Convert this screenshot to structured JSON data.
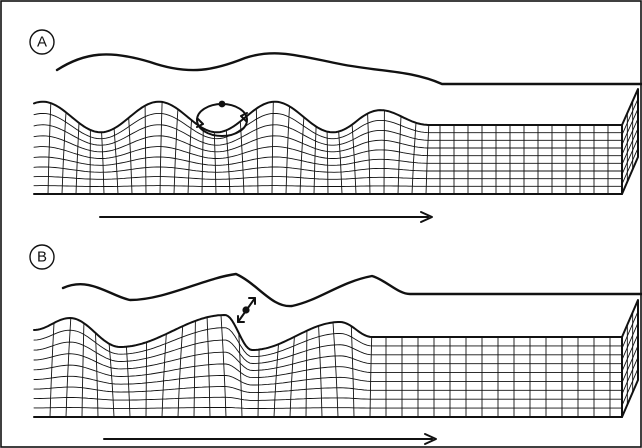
{
  "figure": {
    "panels": [
      {
        "label": "A",
        "wave_type": "rayleigh",
        "particle_motion": "elliptical"
      },
      {
        "label": "B",
        "wave_type": "longitudinal",
        "particle_motion": "back-and-forth"
      }
    ]
  }
}
